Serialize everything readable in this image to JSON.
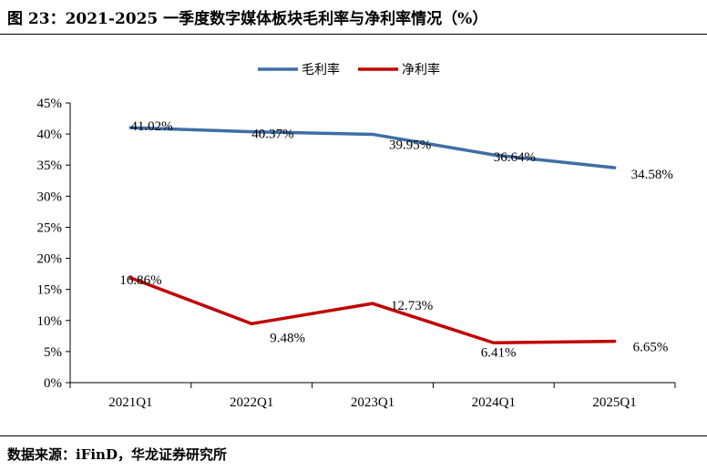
{
  "figure": {
    "title": "图 23：2021-2025 一季度数字媒体板块毛利率与净利率情况（%）",
    "source": "数据来源：iFinD，华龙证券研究所"
  },
  "chart_data": {
    "type": "line",
    "categories": [
      "2021Q1",
      "2022Q1",
      "2023Q1",
      "2024Q1",
      "2025Q1"
    ],
    "ylim": [
      0,
      45
    ],
    "yticks": [
      0,
      5,
      10,
      15,
      20,
      25,
      30,
      35,
      40,
      45
    ],
    "ytick_labels": [
      "0%",
      "5%",
      "10%",
      "15%",
      "20%",
      "25%",
      "30%",
      "35%",
      "40%",
      "45%"
    ],
    "legend_position": "top-center",
    "grid": false,
    "series": [
      {
        "name": "毛利率",
        "color": "#3f6ea5",
        "values": [
          41.02,
          40.37,
          39.95,
          36.64,
          34.58
        ],
        "labels": [
          "41.02%",
          "40.37%",
          "39.95%",
          "36.64%",
          "34.58%"
        ]
      },
      {
        "name": "净利率",
        "color": "#c00000",
        "values": [
          16.86,
          9.48,
          12.73,
          6.41,
          6.65
        ],
        "labels": [
          "16.86%",
          "9.48%",
          "12.73%",
          "6.41%",
          "6.65%"
        ]
      }
    ]
  }
}
